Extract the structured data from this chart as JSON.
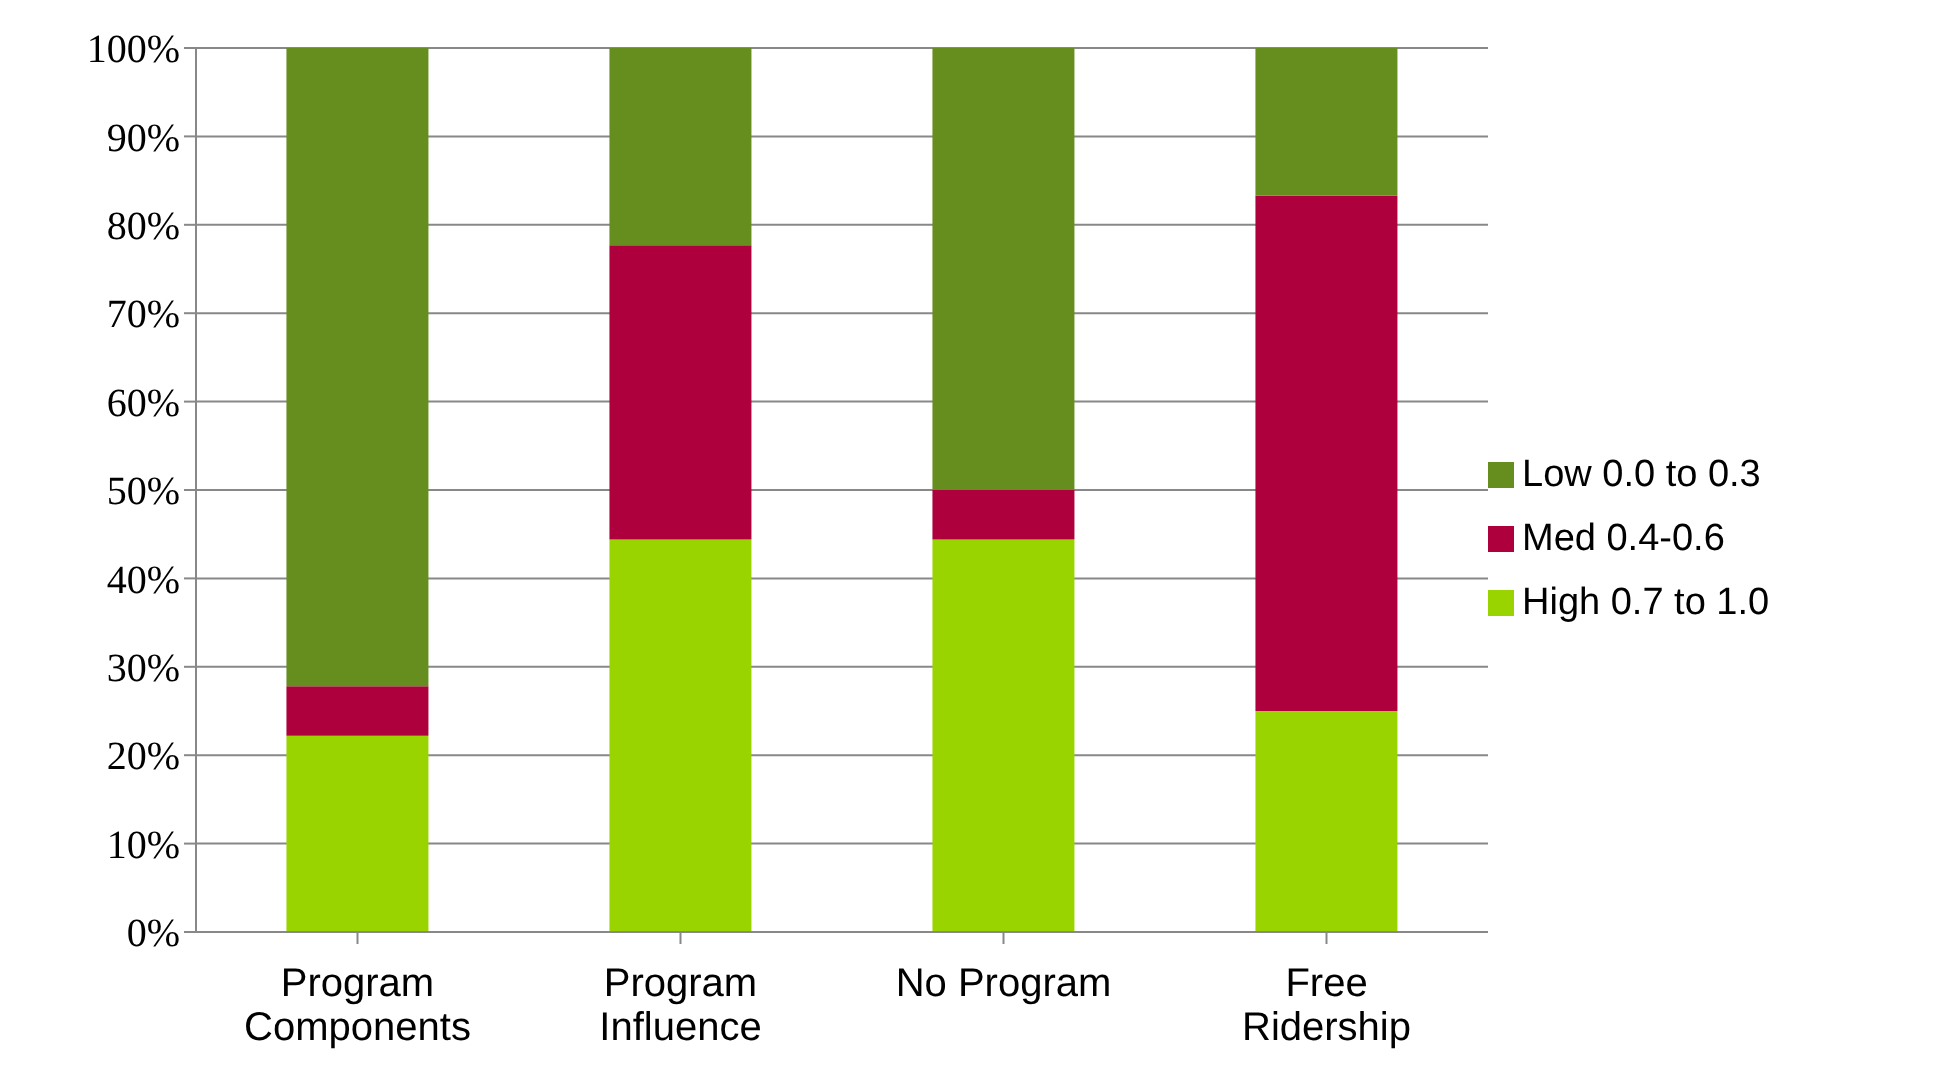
{
  "chart_data": {
    "type": "bar",
    "stacked": true,
    "categories": [
      "Program Components",
      "Program Influence",
      "No Program",
      "Free Ridership"
    ],
    "series": [
      {
        "name": "High 0.7 to 1.0",
        "color": "#99d400",
        "values": [
          22.2,
          44.4,
          44.4,
          25
        ]
      },
      {
        "name": "Med 0.4-0.6",
        "color": "#ad003d",
        "values": [
          5.6,
          33.3,
          5.6,
          58.3
        ]
      },
      {
        "name": "Low 0.0 to 0.3",
        "color": "#668e1f",
        "values": [
          72.2,
          22.3,
          50,
          16.7
        ]
      }
    ],
    "ylim": [
      0,
      100
    ],
    "yticks": [
      {
        "value": 0,
        "label": "0%"
      },
      {
        "value": 10,
        "label": "10%"
      },
      {
        "value": 20,
        "label": "20%"
      },
      {
        "value": 30,
        "label": "30%"
      },
      {
        "value": 40,
        "label": "40%"
      },
      {
        "value": 50,
        "label": "50%"
      },
      {
        "value": 60,
        "label": "60%"
      },
      {
        "value": 70,
        "label": "70%"
      },
      {
        "value": 80,
        "label": "80%"
      },
      {
        "value": 90,
        "label": "90%"
      },
      {
        "value": 100,
        "label": "100%"
      }
    ],
    "grid": "y",
    "legend": "right"
  }
}
